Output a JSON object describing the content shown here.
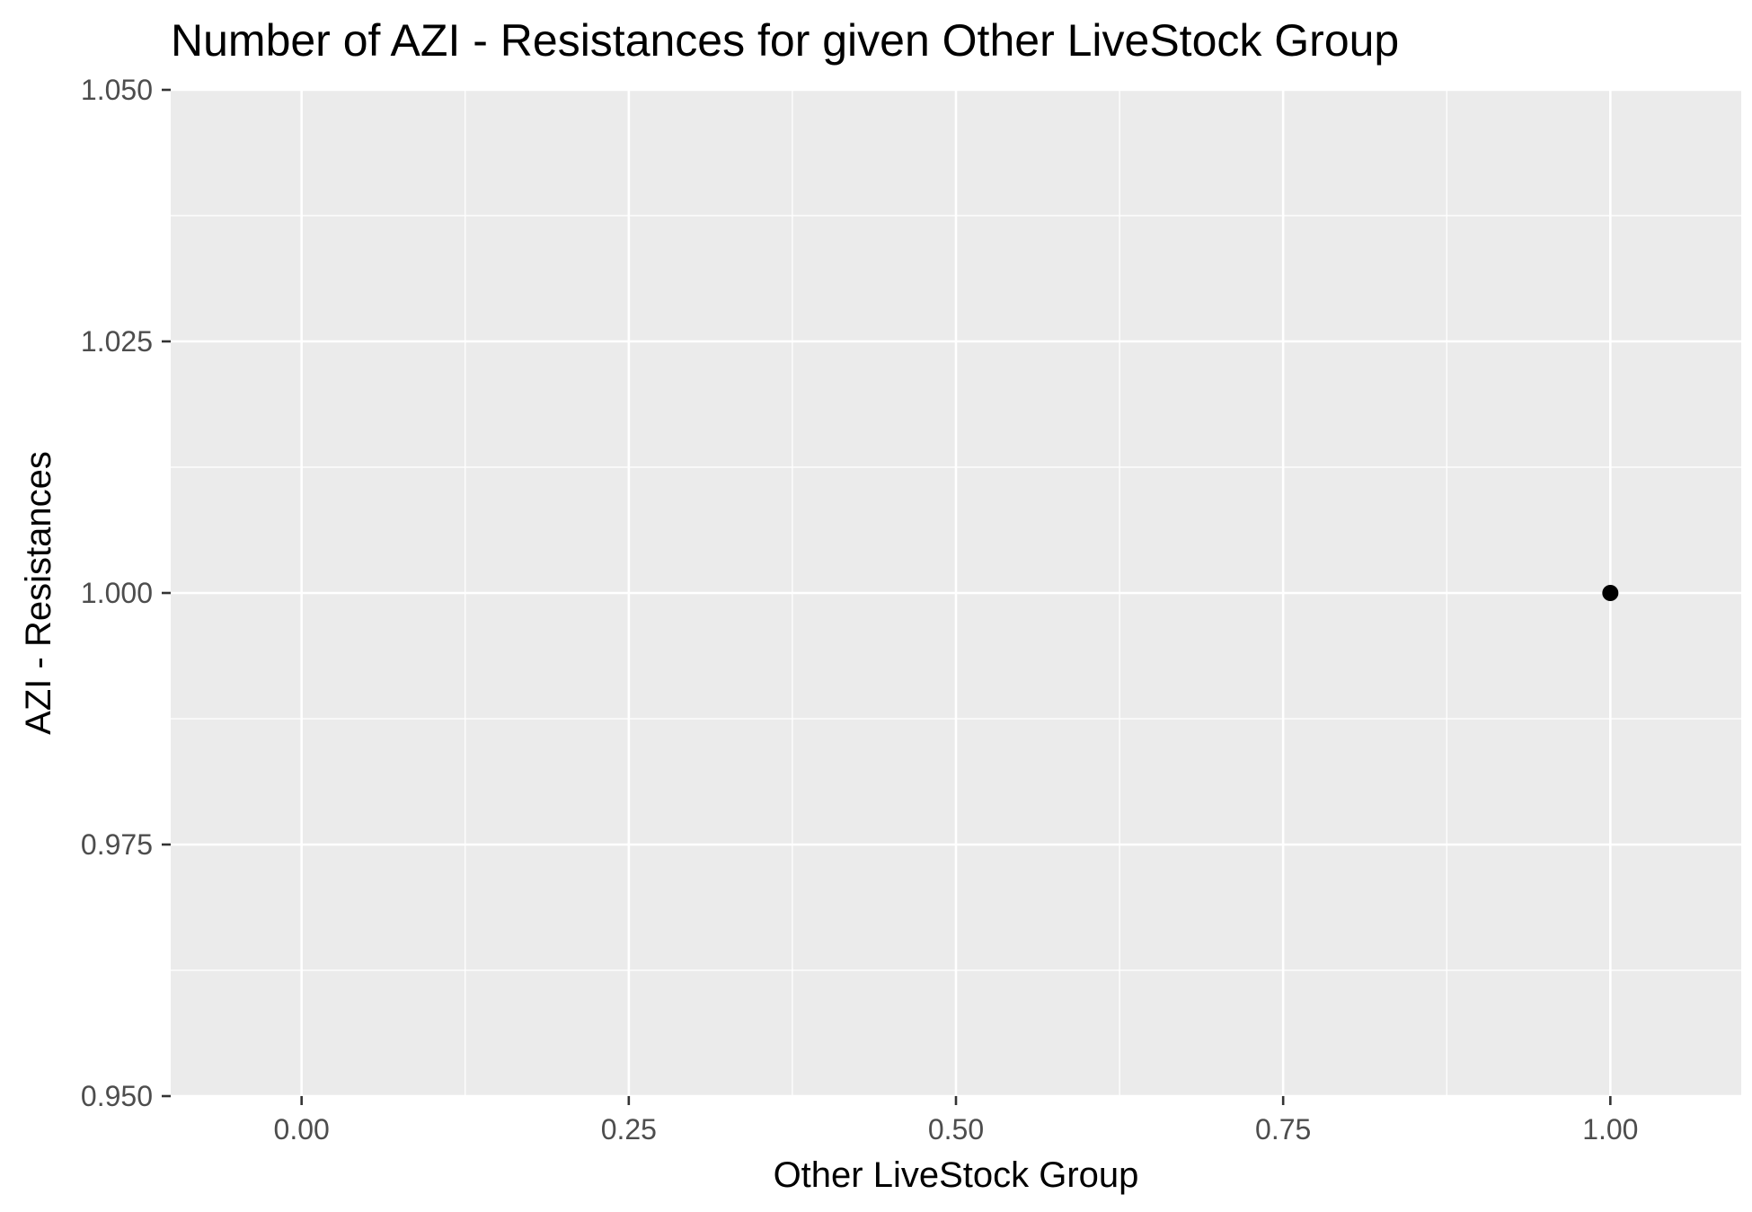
{
  "chart_data": {
    "type": "scatter",
    "title": "Number of AZI - Resistances for given Other LiveStock Group",
    "xlabel": "Other LiveStock Group",
    "ylabel": "AZI - Resistances",
    "xlim": [
      -0.1,
      1.1
    ],
    "ylim": [
      0.95,
      1.05
    ],
    "x_ticks": [
      0.0,
      0.25,
      0.5,
      0.75,
      1.0
    ],
    "x_tick_labels": [
      "0.00",
      "0.25",
      "0.50",
      "0.75",
      "1.00"
    ],
    "y_ticks": [
      0.95,
      0.975,
      1.0,
      1.025,
      1.05
    ],
    "y_tick_labels": [
      "0.950",
      "0.975",
      "1.000",
      "1.025",
      "1.050"
    ],
    "x_minor_ticks": [
      0.125,
      0.375,
      0.625,
      0.875
    ],
    "y_minor_ticks": [
      0.9625,
      0.9875,
      1.0125,
      1.0375
    ],
    "points": [
      {
        "x": 1.0,
        "y": 1.0
      }
    ],
    "grid": true,
    "legend": "none",
    "colors": {
      "panel": "#ebebeb",
      "grid": "#ffffff",
      "point": "#000000",
      "tick_text": "#4d4d4d"
    }
  }
}
